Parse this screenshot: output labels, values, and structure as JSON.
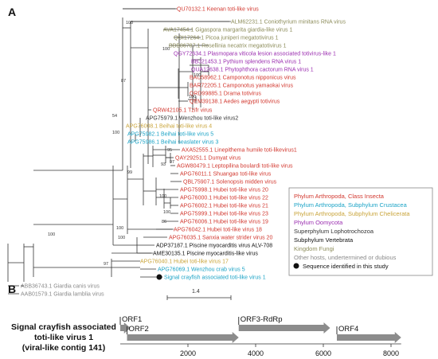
{
  "panel_a": {
    "label": "A",
    "scale_bar_label": "1.4",
    "taxa": [
      {
        "label": "QU70132.1 Keenan toti-like virus",
        "color": "#d2382f"
      },
      {
        "label": "ALM62231.1 Coniothyrium minitans RNA virus",
        "color": "#8c8c5a"
      },
      {
        "label": "AVA17454.1 Gigaspora margarita giardia-like virus 1",
        "color": "#8c8c5a"
      },
      {
        "label": "QOI17264.1 Picoa juniperi megatotivirus 1",
        "color": "#8c8c5a"
      },
      {
        "label": "BBB86787.1 Rosellinia necatrix megatotivirus 1",
        "color": "#8c8c5a"
      },
      {
        "label": "QGY72634.1 Plasmopara viticola lesion associated totivirus-like 1",
        "color": "#9b2fb0"
      },
      {
        "label": "BBJ21453.1 Pythium splendens RNA virus 1",
        "color": "#9b2fb0"
      },
      {
        "label": "QUA12638.1 Phytophthora cactorum RNA virus 1",
        "color": "#9b2fb0"
      },
      {
        "label": "BAU58962.1 Camponotus nipponicus virus",
        "color": "#d2382f"
      },
      {
        "label": "BAR72205.1 Camponotus yamaokai virus",
        "color": "#d2382f"
      },
      {
        "label": "QRD99885.1 Drama totivirus",
        "color": "#d2382f"
      },
      {
        "label": "QEM39138.1 Aedes aegypti totivirus",
        "color": "#d2382f"
      },
      {
        "label": "QRW42105.1 Tzifr virus",
        "color": "#d2382f"
      },
      {
        "label": "APG75979.1 Wenzhou toti-like virus2",
        "color": "#333333"
      },
      {
        "label": "APG76008.1 Beihai toti-like virus 4",
        "color": "#c9a43a"
      },
      {
        "label": "APG75982.1 Beihai toti-like virus 5",
        "color": "#1ba3c6"
      },
      {
        "label": "APG75986.1 Beihai seaslater virus 3",
        "color": "#1ba3c6"
      },
      {
        "label": "AXA52555.1 Linepithema humile toti-likevirus1",
        "color": "#d2382f"
      },
      {
        "label": "QAY29251.1 Dumyat virus",
        "color": "#d2382f"
      },
      {
        "label": "AGW80479.1 Leptopilina boulardi toti-like virus",
        "color": "#d2382f"
      },
      {
        "label": "APG76011.1 Shuangao toti-like virus",
        "color": "#d2382f"
      },
      {
        "label": "QBL75907.1 Solenopsis midden virus",
        "color": "#d2382f"
      },
      {
        "label": "APG75998.1 Hubei toti-like virus 20",
        "color": "#d2382f"
      },
      {
        "label": "APG76000.1 Hubei toti-like virus 22",
        "color": "#d2382f"
      },
      {
        "label": "APG76002.1 Hubei toti-like virus 21",
        "color": "#d2382f"
      },
      {
        "label": "APG75999.1 Hubei toti-like virus 23",
        "color": "#d2382f"
      },
      {
        "label": "APG76006.1 Hubei toti-like virus 19",
        "color": "#d2382f"
      },
      {
        "label": "APG76042.1 Hubei toti-like virus 18",
        "color": "#d2382f"
      },
      {
        "label": "APG76035.1 Sanxia water strider virus 20",
        "color": "#d2382f"
      },
      {
        "label": "ADP37187.1 Piscine myocarditis virus ALV-708",
        "color": "#111111"
      },
      {
        "label": "AME30135.1 Piscine myocarditis-like virus",
        "color": "#111111"
      },
      {
        "label": "APG76040.1 Hubei toti-like virus 17",
        "color": "#c9a43a"
      },
      {
        "label": "APG76069.1 Wenzhou crab virus 5",
        "color": "#1ba3c6"
      },
      {
        "label": "Signal crayfish associated toti-like virus 1",
        "color": "#1ba3c6"
      },
      {
        "label": "ABB36743.1 Giardia canis virus",
        "color": "#8a8a8a"
      },
      {
        "label": "AAB01579.1 Giardia lamblia virus",
        "color": "#8a8a8a"
      }
    ],
    "bootstrap_labels": [
      "100",
      "100",
      "100",
      "87",
      "100",
      "54",
      "100",
      "95",
      "97",
      "93",
      "99",
      "100",
      "100",
      "86",
      "100",
      "100",
      "100",
      "97"
    ],
    "legend": [
      {
        "label": "Phylum Arthropoda, Class Insecta",
        "color": "#d2382f"
      },
      {
        "label": "Phylum Arthropoda, Subphylum Crustacea",
        "color": "#1ba3c6"
      },
      {
        "label": "Phylum Arthropoda, Subphylum Chelicerata",
        "color": "#c9a43a"
      },
      {
        "label": "Phylum Oomycota",
        "color": "#9b2fb0"
      },
      {
        "label": "Superphylum Lophotrochozoa",
        "color": "#333333"
      },
      {
        "label": "Subphylum Vertebrata",
        "color": "#111111"
      },
      {
        "label": "Kingdom Fungi",
        "color": "#8c8c5a"
      },
      {
        "label": "Other hosts, undertermined or dubious",
        "color": "#8a8a8a"
      },
      {
        "label": "Sequence identified in this study",
        "color": "#111111",
        "marker": "dot"
      }
    ]
  },
  "panel_b": {
    "label": "B",
    "genome_title_lines": [
      "Signal crayfish associated",
      "toti-like virus 1",
      "(viral-like contig 141)"
    ],
    "orfs": [
      {
        "name": "ORF1",
        "start": 0,
        "end": 300
      },
      {
        "name": "ORF2",
        "start": 200,
        "end": 3500
      },
      {
        "name": "ORF3-RdRp",
        "start": 3500,
        "end": 6200
      },
      {
        "name": "ORF4",
        "start": 6400,
        "end": 8300
      }
    ],
    "axis_ticks": [
      "2000",
      "4000",
      "6000",
      "8000"
    ],
    "axis_tick_values": [
      2000,
      4000,
      6000,
      8000
    ]
  }
}
